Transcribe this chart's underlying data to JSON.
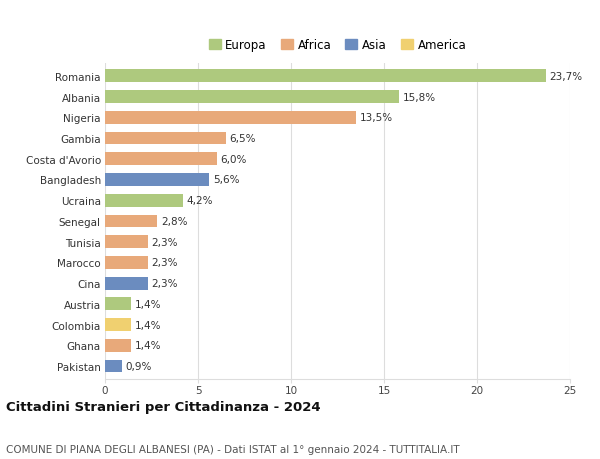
{
  "countries": [
    "Romania",
    "Albania",
    "Nigeria",
    "Gambia",
    "Costa d'Avorio",
    "Bangladesh",
    "Ucraina",
    "Senegal",
    "Tunisia",
    "Marocco",
    "Cina",
    "Austria",
    "Colombia",
    "Ghana",
    "Pakistan"
  ],
  "values": [
    23.7,
    15.8,
    13.5,
    6.5,
    6.0,
    5.6,
    4.2,
    2.8,
    2.3,
    2.3,
    2.3,
    1.4,
    1.4,
    1.4,
    0.9
  ],
  "continents": [
    "Europa",
    "Europa",
    "Africa",
    "Africa",
    "Africa",
    "Asia",
    "Europa",
    "Africa",
    "Africa",
    "Africa",
    "Asia",
    "Europa",
    "America",
    "Africa",
    "Asia"
  ],
  "colors": {
    "Europa": "#aec97e",
    "Africa": "#e8a97a",
    "Asia": "#6b8cbf",
    "America": "#f0d070"
  },
  "xlim": [
    0,
    25
  ],
  "xticks": [
    0,
    5,
    10,
    15,
    20,
    25
  ],
  "title": "Cittadini Stranieri per Cittadinanza - 2024",
  "subtitle": "COMUNE DI PIANA DEGLI ALBANESI (PA) - Dati ISTAT al 1° gennaio 2024 - TUTTITALIA.IT",
  "background_color": "#ffffff",
  "grid_color": "#dddddd",
  "bar_height": 0.62,
  "title_fontsize": 9.5,
  "subtitle_fontsize": 7.5,
  "tick_fontsize": 7.5,
  "value_fontsize": 7.5,
  "legend_fontsize": 8.5
}
